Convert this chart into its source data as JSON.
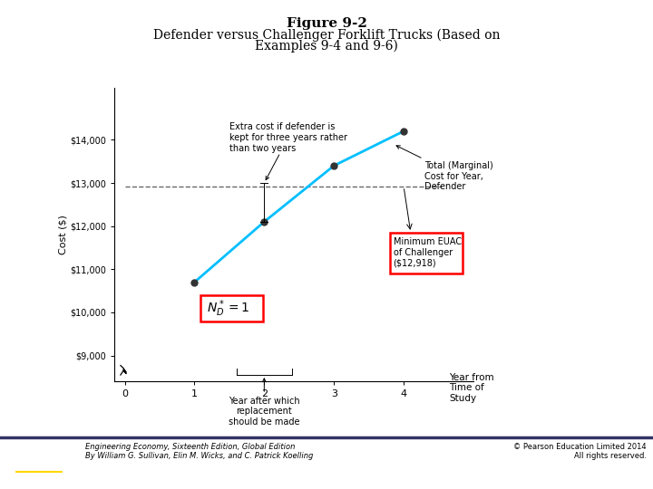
{
  "title_line1": "Figure 9-2",
  "title_line2": "Defender versus Challenger Forklift Trucks (Based on",
  "title_line3": "Examples 9-4 and 9-6)",
  "line_x": [
    1,
    2,
    3,
    4
  ],
  "line_y": [
    10700,
    12100,
    13400,
    14200
  ],
  "line_color": "#00BFFF",
  "line_width": 2.0,
  "dashed_y": 12918,
  "dashed_color": "#666666",
  "ylabel": "Cost ($)",
  "yticks": [
    9000,
    10000,
    11000,
    12000,
    13000,
    14000
  ],
  "ytick_labels": [
    "$9,000",
    "$10,000",
    "$11,000",
    "$12,000",
    "$13,000",
    "$14,000"
  ],
  "xticks": [
    0,
    1,
    2,
    3,
    4
  ],
  "xlim": [
    -0.15,
    5.0
  ],
  "ylim": [
    8400,
    15200
  ],
  "annotation_extra_cost_text": "Extra cost if defender is\nkept for three years rather\nthan two years",
  "annotation_total_text": "Total (Marginal)\nCost for Year,\nDefender",
  "annotation_year_text": "Year after which\nreplacement\nshould be made",
  "annotation_challenger_text": "Minimum EUAC\nof Challenger\n($12,918)",
  "background_color": "#ffffff",
  "footer_left": "Engineering Economy, Sixteenth Edition, Global Edition\nBy William G. Sullivan, Elin M. Wicks, and C. Patrick Koelling",
  "footer_right": "© Pearson Education Limited 2014\nAll rights reserved.",
  "pearson_bg": "#1F3864",
  "marker_color": "#333333",
  "marker_size": 5
}
